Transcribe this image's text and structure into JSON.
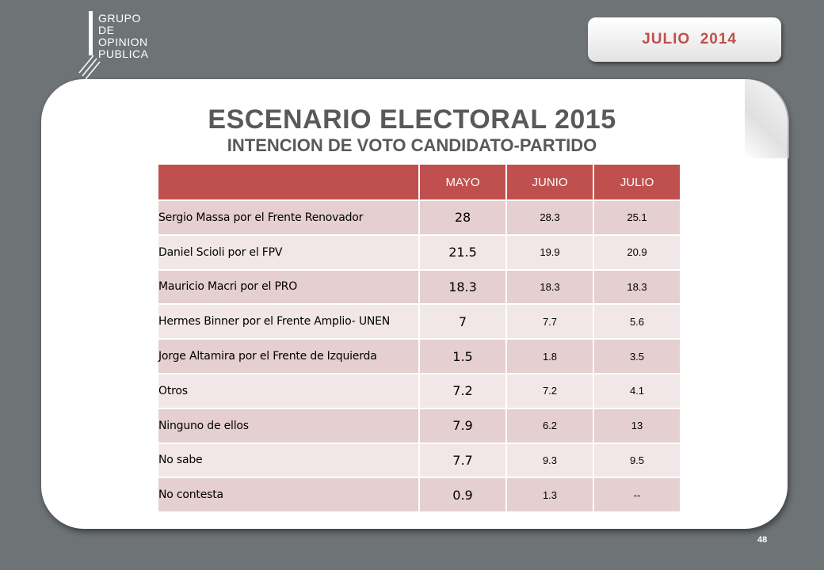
{
  "logo": {
    "lines": [
      "GRUPO",
      "DE",
      "OPINION",
      "PUBLICA"
    ]
  },
  "date_label": "JULIO  2014",
  "title": "ESCENARIO ELECTORAL 2015",
  "subtitle": "INTENCION DE VOTO CANDIDATO-PARTIDO",
  "table": {
    "headers": [
      "",
      "MAYO",
      "JUNIO",
      "JULIO"
    ],
    "rows": [
      {
        "name": "Sergio Massa por el Frente Renovador",
        "mayo": "28",
        "junio": "28.3",
        "julio": "25.1"
      },
      {
        "name": "Daniel Scioli por el FPV",
        "mayo": "21.5",
        "junio": "19.9",
        "julio": "20.9"
      },
      {
        "name": "Mauricio Macri por el PRO",
        "mayo": "18.3",
        "junio": "18.3",
        "julio": "18.3"
      },
      {
        "name": "Hermes Binner por el Frente Amplio- UNEN",
        "mayo": "7",
        "junio": "7.7",
        "julio": "5.6"
      },
      {
        "name": "Jorge Altamira por el Frente de Izquierda",
        "mayo": "1.5",
        "junio": "1.8",
        "julio": "3.5"
      },
      {
        "name": "Otros",
        "mayo": "7.2",
        "junio": "7.2",
        "julio": "4.1"
      },
      {
        "name": "Ninguno de ellos",
        "mayo": "7.9",
        "junio": "6.2",
        "julio": "13"
      },
      {
        "name": "No sabe",
        "mayo": "7.7",
        "junio": "9.3",
        "julio": "9.5"
      },
      {
        "name": "No contesta",
        "mayo": "0.9",
        "junio": "1.3",
        "julio": "--"
      }
    ]
  },
  "page_number": "48",
  "colors": {
    "accent": "#c0504d",
    "background": "#6e7476",
    "row_odd": "#e5cfd0",
    "row_even": "#f2e7e8"
  }
}
